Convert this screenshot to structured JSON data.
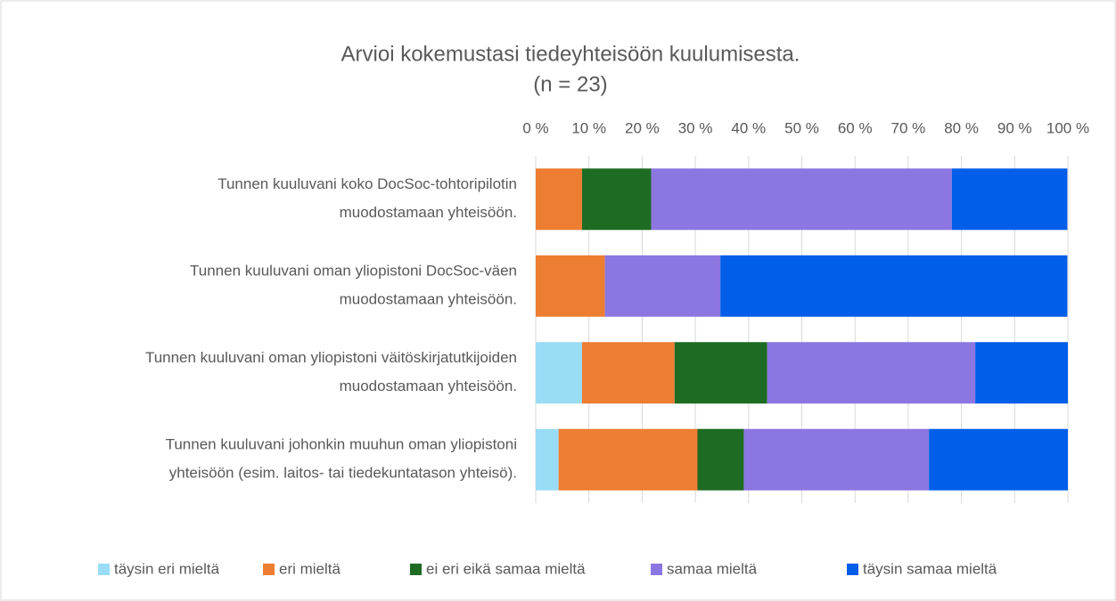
{
  "chart_data": {
    "type": "stacked-bar-horizontal",
    "title": "Arvioi kokemustasi tiedeyhteisöön kuulumisesta.",
    "subtitle": "(n = 23)",
    "categories": [
      [
        "Tunnen kuuluvani koko DocSoc-tohtoripilotin",
        "muodostamaan yhteisöön."
      ],
      [
        "Tunnen kuuluvani oman yliopistoni DocSoc-väen",
        "muodostamaan yhteisöön."
      ],
      [
        "Tunnen kuuluvani oman yliopistoni väitöskirjatutkijoiden",
        "muodostamaan yhteisöön."
      ],
      [
        "Tunnen kuuluvani johonkin muuhun oman yliopistoni",
        "yhteisöön (esim. laitos- tai tiedekuntatason yhteisö)."
      ]
    ],
    "series": [
      {
        "name": "täysin eri mieltä",
        "color": "#99dcf5",
        "values": [
          0,
          0,
          8.7,
          4.3
        ]
      },
      {
        "name": "eri mieltä",
        "color": "#ed7d31",
        "values": [
          8.7,
          13.0,
          17.4,
          26.1
        ]
      },
      {
        "name": "ei eri eikä samaa mieltä",
        "color": "#1e6b23",
        "values": [
          13.0,
          0,
          17.4,
          8.7
        ]
      },
      {
        "name": "samaa mieltä",
        "color": "#8b76e2",
        "values": [
          56.5,
          21.7,
          39.1,
          34.8
        ]
      },
      {
        "name": "täysin samaa mieltä",
        "color": "#005ee8",
        "values": [
          21.7,
          65.2,
          17.4,
          26.1
        ]
      }
    ],
    "xlim": [
      0,
      100
    ],
    "xticks": [
      {
        "value": 0,
        "label": "0 %"
      },
      {
        "value": 10,
        "label": "10 %"
      },
      {
        "value": 20,
        "label": "20 %"
      },
      {
        "value": 30,
        "label": "30 %"
      },
      {
        "value": 40,
        "label": "40 %"
      },
      {
        "value": 50,
        "label": "50 %"
      },
      {
        "value": 60,
        "label": "60 %"
      },
      {
        "value": 70,
        "label": "70 %"
      },
      {
        "value": 80,
        "label": "80 %"
      },
      {
        "value": 90,
        "label": "90 %"
      },
      {
        "value": 100,
        "label": "100 %"
      }
    ],
    "grid": true,
    "legend": "bottom"
  }
}
